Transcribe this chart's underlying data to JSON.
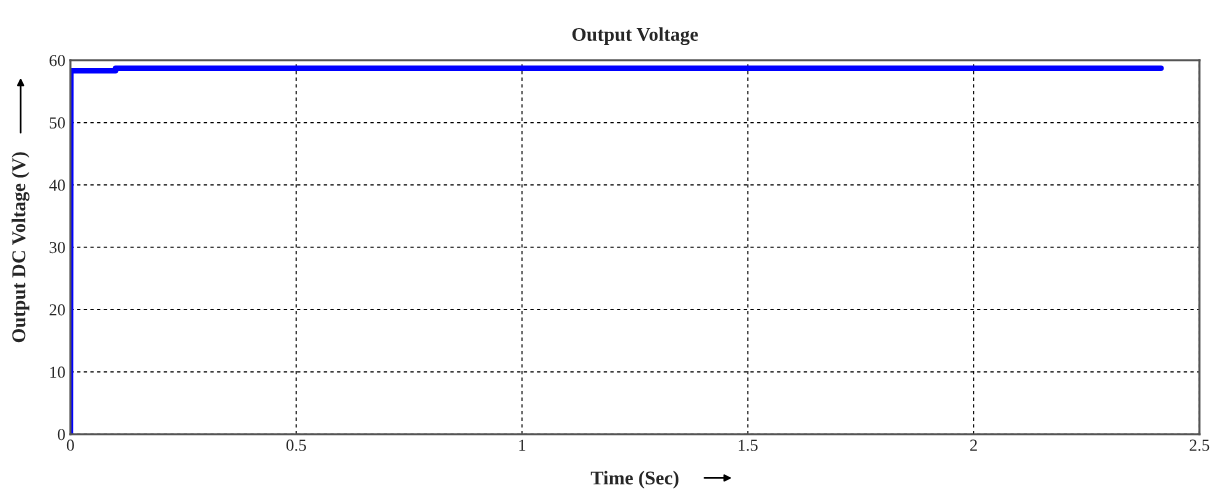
{
  "chart_data": {
    "type": "line",
    "title": "Output Voltage",
    "xlabel": "Time (Sec)",
    "ylabel": "Output DC Voltage (V)",
    "x": [
      0,
      0.001,
      0.1,
      0.1,
      2.415
    ],
    "series": [
      {
        "color": "#0000ff",
        "values": [
          0,
          58.3,
          58.3,
          58.7,
          58.7
        ]
      }
    ],
    "xlim": [
      0,
      2.5
    ],
    "xticks": [
      0,
      0.5,
      1,
      1.5,
      2,
      2.5
    ],
    "ylim": [
      0,
      60
    ],
    "yticks": [
      0,
      10,
      20,
      30,
      40,
      50,
      60
    ],
    "grid": true,
    "line_style": "solid",
    "marker": "none"
  }
}
